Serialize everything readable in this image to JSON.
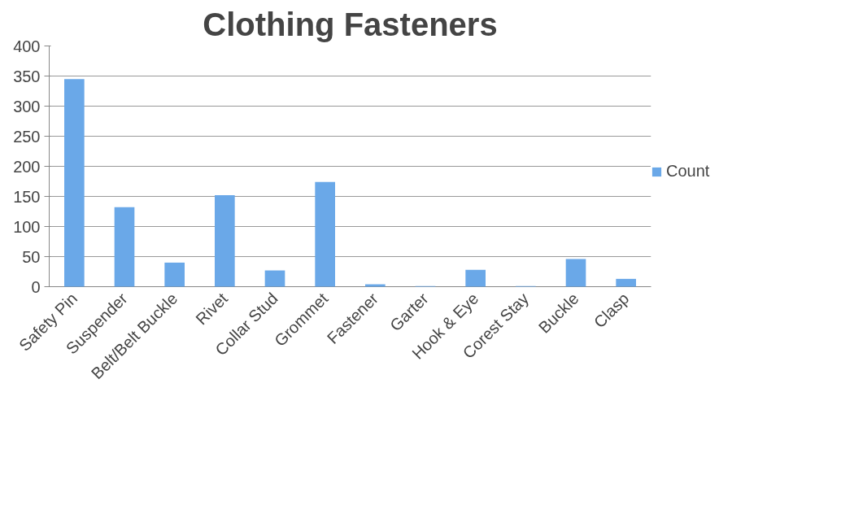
{
  "chart_data": {
    "type": "bar",
    "title": "Clothing Fasteners",
    "categories": [
      "Safety Pin",
      "Suspender",
      "Belt/Belt Buckle",
      "Rivet",
      "Collar Stud",
      "Grommet",
      "Fastener",
      "Garter",
      "Hook & Eye",
      "Corest Stay",
      "Buckle",
      "Clasp"
    ],
    "series": [
      {
        "name": "Count",
        "color": "#6aa8e8",
        "values": [
          345,
          132,
          40,
          152,
          27,
          174,
          4,
          1,
          28,
          1,
          46,
          13
        ]
      }
    ],
    "ylim": [
      0,
      400
    ],
    "yticks": [
      0,
      50,
      100,
      150,
      200,
      250,
      300,
      350,
      400
    ],
    "grid": "y",
    "legend": "right"
  }
}
